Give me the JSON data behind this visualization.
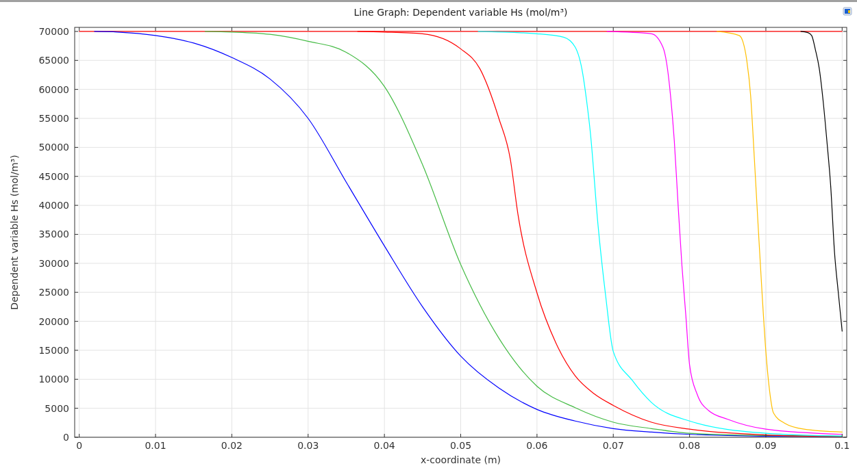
{
  "chart_data": {
    "type": "line",
    "title": "Line Graph: Dependent variable Hs (mol/m³)",
    "xlabel": "x-coordinate (m)",
    "ylabel": "Dependent variable Hs (mol/m³)",
    "xlim": [
      -0.0006,
      0.1006
    ],
    "ylim": [
      0,
      70700
    ],
    "xticks": [
      0,
      0.01,
      0.02,
      0.03,
      0.04,
      0.05,
      0.06,
      0.07,
      0.08,
      0.09,
      0.1
    ],
    "yticks": [
      0,
      5000,
      10000,
      15000,
      20000,
      25000,
      30000,
      35000,
      40000,
      45000,
      50000,
      55000,
      60000,
      65000,
      70000
    ],
    "grid": true,
    "line_style": "solid",
    "series": [
      {
        "color": "#ff0000",
        "x": [
          0,
          0.1
        ],
        "values": [
          70000,
          70000
        ]
      },
      {
        "color": "#0000ff",
        "x": [
          0.002,
          0.005,
          0.01,
          0.015,
          0.02,
          0.025,
          0.03,
          0.035,
          0.04,
          0.045,
          0.05,
          0.055,
          0.06,
          0.065,
          0.07,
          0.075,
          0.08,
          0.09,
          0.1
        ],
        "values": [
          70000,
          69900,
          69300,
          68000,
          65500,
          61800,
          55000,
          44000,
          33000,
          22500,
          14000,
          8500,
          4800,
          2800,
          1500,
          900,
          500,
          200,
          100
        ]
      },
      {
        "color": "#44bb44",
        "x": [
          0.0165,
          0.02,
          0.025,
          0.03,
          0.035,
          0.04,
          0.045,
          0.05,
          0.055,
          0.06,
          0.065,
          0.07,
          0.075,
          0.08,
          0.09,
          0.1
        ],
        "values": [
          70000,
          69900,
          69500,
          68300,
          66400,
          60500,
          47000,
          29800,
          17100,
          8800,
          5100,
          2600,
          1500,
          700,
          300,
          200
        ]
      },
      {
        "color": "#ff0000",
        "x": [
          0.0365,
          0.04,
          0.045,
          0.05,
          0.0525,
          0.055,
          0.0565,
          0.0575,
          0.06,
          0.0625,
          0.065,
          0.0675,
          0.07,
          0.075,
          0.08,
          0.09,
          0.1
        ],
        "values": [
          70000,
          69900,
          69600,
          67000,
          63600,
          55000,
          48000,
          38500,
          24900,
          16200,
          10600,
          7500,
          5500,
          2600,
          1400,
          400,
          100
        ]
      },
      {
        "color": "#00ffff",
        "x": [
          0.0523,
          0.06,
          0.0635,
          0.065,
          0.066,
          0.0665,
          0.067,
          0.068,
          0.069,
          0.07,
          0.0725,
          0.075,
          0.08,
          0.09,
          0.1
        ],
        "values": [
          70000,
          69600,
          69000,
          67300,
          62700,
          58100,
          52500,
          36600,
          24400,
          14800,
          9800,
          6000,
          2800,
          700,
          200
        ]
      },
      {
        "color": "#ff00ff",
        "x": [
          0.0692,
          0.075,
          0.0765,
          0.077,
          0.0775,
          0.078,
          0.0785,
          0.079,
          0.0795,
          0.08,
          0.081,
          0.0825,
          0.085,
          0.09,
          0.1
        ],
        "values": [
          70000,
          69600,
          67300,
          64500,
          59000,
          51100,
          40000,
          29600,
          21200,
          12500,
          7400,
          4600,
          3100,
          1400,
          500
        ]
      },
      {
        "color": "#ffbf00",
        "x": [
          0.0836,
          0.0865,
          0.087,
          0.0875,
          0.088,
          0.0885,
          0.089,
          0.0895,
          0.09,
          0.0905,
          0.091,
          0.0925,
          0.095,
          0.1
        ],
        "values": [
          70000,
          69300,
          68200,
          65000,
          59000,
          47900,
          36200,
          24900,
          14800,
          7900,
          4200,
          2400,
          1400,
          900
        ]
      },
      {
        "color": "#000000",
        "x": [
          0.0946,
          0.0955,
          0.096,
          0.0965,
          0.097,
          0.0975,
          0.098,
          0.0985,
          0.099,
          0.0995,
          0.1
        ],
        "values": [
          70000,
          69800,
          69300,
          66800,
          63600,
          58100,
          51100,
          43300,
          31900,
          24900,
          18300
        ]
      }
    ]
  }
}
